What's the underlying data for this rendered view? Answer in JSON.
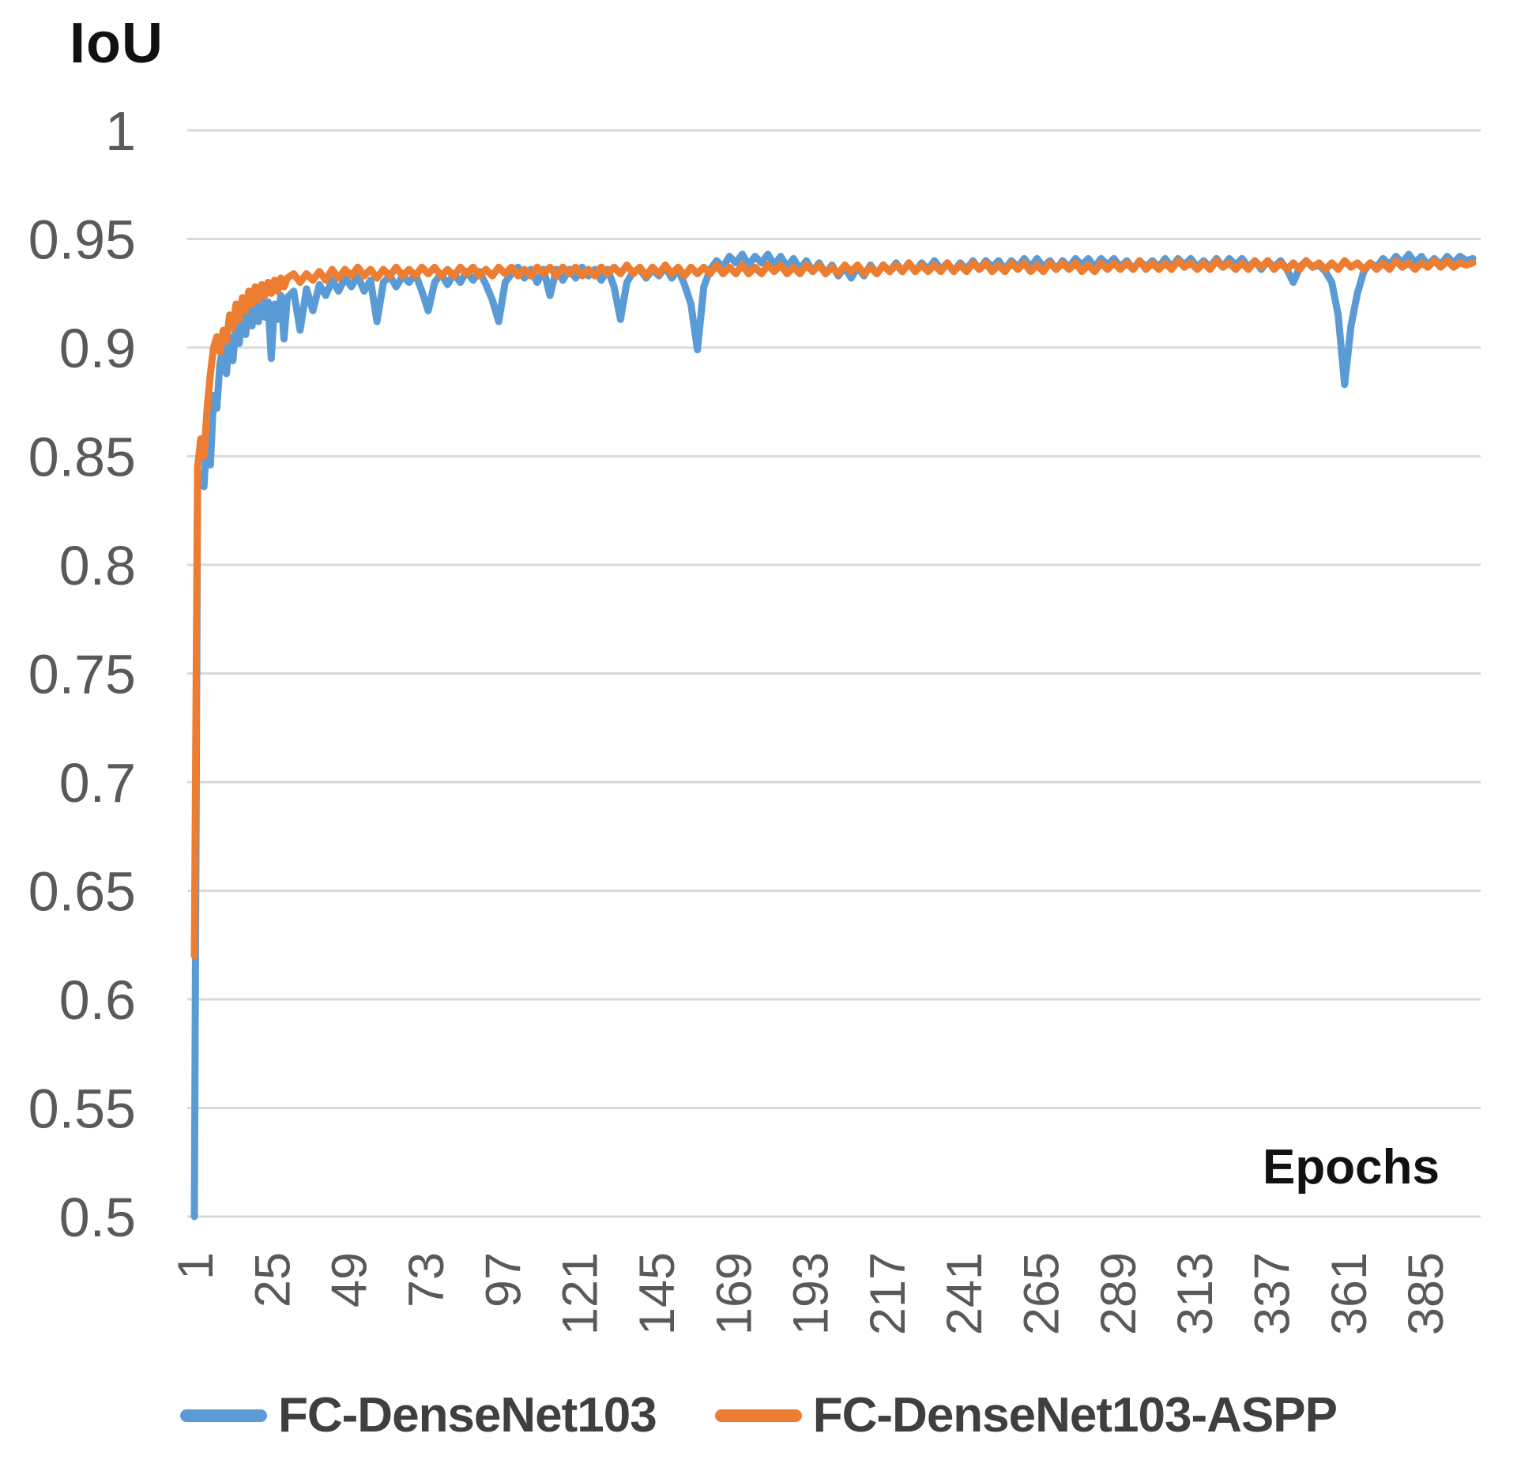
{
  "figure": {
    "y_axis_title": "IoU",
    "x_axis_title": "Epochs"
  },
  "legend": {
    "items": [
      {
        "label": "FC-DenseNet103",
        "color": "#5B9BD5"
      },
      {
        "label": "FC-DenseNet103-ASPP",
        "color": "#ED7D31"
      }
    ]
  },
  "colors": {
    "gridline": "#D9D9D9",
    "tick_label": "#595959",
    "axis_title": "#111111",
    "legend_text": "#3F3F3F",
    "background": "#FFFFFF"
  },
  "chart_data": {
    "type": "line",
    "title": "",
    "ylabel": "IoU",
    "xlabel": "Epochs",
    "ylim": [
      0.5,
      1.0
    ],
    "xlim": [
      1,
      400
    ],
    "grid": "horizontal-only",
    "legend_position": "bottom",
    "x_tick_rotation": -90,
    "y_ticks": [
      1,
      0.95,
      0.9,
      0.85,
      0.8,
      0.75,
      0.7,
      0.65,
      0.6,
      0.55,
      0.5
    ],
    "y_tick_labels": [
      "1",
      "0.95",
      "0.9",
      "0.85",
      "0.8",
      "0.75",
      "0.7",
      "0.65",
      "0.6",
      "0.55",
      "0.5"
    ],
    "x_ticks": [
      1,
      25,
      49,
      73,
      97,
      121,
      145,
      169,
      193,
      217,
      241,
      265,
      289,
      313,
      337,
      361,
      385
    ],
    "x": [
      1,
      2,
      3,
      4,
      5,
      6,
      7,
      8,
      9,
      10,
      11,
      12,
      13,
      14,
      15,
      16,
      17,
      18,
      19,
      20,
      21,
      22,
      23,
      24,
      25,
      26,
      27,
      28,
      29,
      30,
      32,
      34,
      36,
      38,
      40,
      42,
      44,
      46,
      48,
      50,
      52,
      54,
      56,
      58,
      60,
      62,
      64,
      66,
      68,
      70,
      72,
      74,
      76,
      78,
      80,
      82,
      84,
      86,
      88,
      90,
      92,
      94,
      96,
      98,
      100,
      102,
      104,
      106,
      108,
      110,
      112,
      114,
      116,
      118,
      120,
      122,
      124,
      126,
      128,
      130,
      132,
      134,
      136,
      138,
      140,
      142,
      144,
      146,
      148,
      150,
      152,
      154,
      156,
      158,
      160,
      162,
      164,
      166,
      168,
      170,
      172,
      174,
      176,
      178,
      180,
      182,
      184,
      186,
      188,
      190,
      192,
      194,
      196,
      198,
      200,
      202,
      204,
      206,
      208,
      210,
      212,
      214,
      216,
      218,
      220,
      222,
      224,
      226,
      228,
      230,
      232,
      234,
      236,
      238,
      240,
      242,
      244,
      246,
      248,
      250,
      252,
      254,
      256,
      258,
      260,
      262,
      264,
      266,
      268,
      270,
      272,
      274,
      276,
      278,
      280,
      282,
      284,
      286,
      288,
      290,
      292,
      294,
      296,
      298,
      300,
      302,
      304,
      306,
      308,
      310,
      312,
      314,
      316,
      318,
      320,
      322,
      324,
      326,
      328,
      330,
      332,
      334,
      336,
      338,
      340,
      342,
      344,
      346,
      348,
      350,
      352,
      354,
      356,
      358,
      360,
      362,
      364,
      366,
      368,
      370,
      372,
      374,
      376,
      378,
      380,
      382,
      384,
      386,
      388,
      390,
      392,
      394,
      396,
      398,
      400
    ],
    "series": [
      {
        "name": "FC-DenseNet103",
        "color": "#5B9BD5",
        "values": [
          0.5,
          0.838,
          0.842,
          0.836,
          0.862,
          0.846,
          0.878,
          0.872,
          0.893,
          0.9,
          0.888,
          0.905,
          0.894,
          0.91,
          0.902,
          0.915,
          0.906,
          0.918,
          0.91,
          0.92,
          0.912,
          0.923,
          0.914,
          0.921,
          0.895,
          0.92,
          0.913,
          0.924,
          0.904,
          0.923,
          0.926,
          0.908,
          0.927,
          0.917,
          0.929,
          0.924,
          0.931,
          0.926,
          0.932,
          0.928,
          0.933,
          0.926,
          0.931,
          0.912,
          0.93,
          0.933,
          0.928,
          0.933,
          0.93,
          0.934,
          0.926,
          0.917,
          0.93,
          0.934,
          0.929,
          0.934,
          0.93,
          0.935,
          0.931,
          0.935,
          0.929,
          0.922,
          0.912,
          0.93,
          0.934,
          0.937,
          0.932,
          0.936,
          0.93,
          0.936,
          0.924,
          0.936,
          0.931,
          0.936,
          0.932,
          0.937,
          0.933,
          0.936,
          0.931,
          0.936,
          0.928,
          0.913,
          0.93,
          0.935,
          0.936,
          0.932,
          0.936,
          0.933,
          0.937,
          0.932,
          0.936,
          0.929,
          0.92,
          0.899,
          0.928,
          0.936,
          0.94,
          0.937,
          0.942,
          0.939,
          0.943,
          0.938,
          0.942,
          0.939,
          0.943,
          0.938,
          0.942,
          0.937,
          0.941,
          0.936,
          0.94,
          0.935,
          0.939,
          0.934,
          0.938,
          0.933,
          0.937,
          0.932,
          0.937,
          0.933,
          0.938,
          0.934,
          0.938,
          0.935,
          0.939,
          0.935,
          0.939,
          0.935,
          0.939,
          0.936,
          0.94,
          0.936,
          0.939,
          0.935,
          0.939,
          0.936,
          0.94,
          0.936,
          0.94,
          0.937,
          0.94,
          0.936,
          0.94,
          0.937,
          0.941,
          0.937,
          0.941,
          0.937,
          0.94,
          0.936,
          0.94,
          0.937,
          0.941,
          0.938,
          0.941,
          0.937,
          0.941,
          0.938,
          0.941,
          0.937,
          0.94,
          0.936,
          0.94,
          0.937,
          0.94,
          0.937,
          0.941,
          0.937,
          0.941,
          0.938,
          0.941,
          0.937,
          0.94,
          0.937,
          0.941,
          0.937,
          0.941,
          0.938,
          0.941,
          0.937,
          0.94,
          0.936,
          0.94,
          0.937,
          0.94,
          0.936,
          0.93,
          0.937,
          0.94,
          0.937,
          0.938,
          0.935,
          0.93,
          0.915,
          0.883,
          0.91,
          0.925,
          0.935,
          0.939,
          0.937,
          0.941,
          0.938,
          0.942,
          0.939,
          0.943,
          0.939,
          0.942,
          0.938,
          0.941,
          0.938,
          0.942,
          0.939,
          0.942,
          0.94,
          0.941
        ]
      },
      {
        "name": "FC-DenseNet103-ASPP",
        "color": "#ED7D31",
        "values": [
          0.62,
          0.845,
          0.858,
          0.85,
          0.872,
          0.888,
          0.9,
          0.905,
          0.898,
          0.908,
          0.903,
          0.915,
          0.909,
          0.92,
          0.913,
          0.923,
          0.917,
          0.926,
          0.92,
          0.928,
          0.922,
          0.929,
          0.924,
          0.93,
          0.925,
          0.931,
          0.926,
          0.932,
          0.928,
          0.932,
          0.934,
          0.93,
          0.934,
          0.931,
          0.935,
          0.931,
          0.936,
          0.932,
          0.936,
          0.933,
          0.937,
          0.933,
          0.936,
          0.932,
          0.936,
          0.933,
          0.937,
          0.933,
          0.936,
          0.933,
          0.937,
          0.934,
          0.937,
          0.933,
          0.936,
          0.933,
          0.937,
          0.934,
          0.937,
          0.933,
          0.936,
          0.933,
          0.937,
          0.934,
          0.937,
          0.933,
          0.936,
          0.933,
          0.937,
          0.934,
          0.937,
          0.933,
          0.937,
          0.934,
          0.937,
          0.933,
          0.936,
          0.933,
          0.937,
          0.934,
          0.937,
          0.934,
          0.938,
          0.934,
          0.937,
          0.933,
          0.937,
          0.934,
          0.938,
          0.934,
          0.937,
          0.933,
          0.937,
          0.934,
          0.937,
          0.934,
          0.938,
          0.934,
          0.937,
          0.934,
          0.938,
          0.934,
          0.937,
          0.934,
          0.938,
          0.935,
          0.938,
          0.934,
          0.937,
          0.934,
          0.938,
          0.935,
          0.938,
          0.934,
          0.937,
          0.934,
          0.938,
          0.935,
          0.938,
          0.934,
          0.937,
          0.934,
          0.938,
          0.935,
          0.938,
          0.935,
          0.939,
          0.935,
          0.938,
          0.935,
          0.938,
          0.935,
          0.939,
          0.935,
          0.938,
          0.935,
          0.939,
          0.936,
          0.939,
          0.935,
          0.938,
          0.935,
          0.939,
          0.936,
          0.939,
          0.935,
          0.938,
          0.935,
          0.939,
          0.936,
          0.939,
          0.936,
          0.939,
          0.935,
          0.938,
          0.935,
          0.939,
          0.936,
          0.939,
          0.936,
          0.939,
          0.936,
          0.94,
          0.936,
          0.939,
          0.936,
          0.939,
          0.936,
          0.94,
          0.937,
          0.939,
          0.936,
          0.939,
          0.936,
          0.94,
          0.937,
          0.939,
          0.936,
          0.939,
          0.936,
          0.94,
          0.937,
          0.94,
          0.936,
          0.939,
          0.936,
          0.939,
          0.936,
          0.94,
          0.937,
          0.939,
          0.936,
          0.939,
          0.936,
          0.94,
          0.937,
          0.939,
          0.936,
          0.939,
          0.936,
          0.939,
          0.936,
          0.94,
          0.937,
          0.939,
          0.936,
          0.939,
          0.937,
          0.94,
          0.937,
          0.94,
          0.937,
          0.939,
          0.938,
          0.939
        ]
      }
    ]
  }
}
